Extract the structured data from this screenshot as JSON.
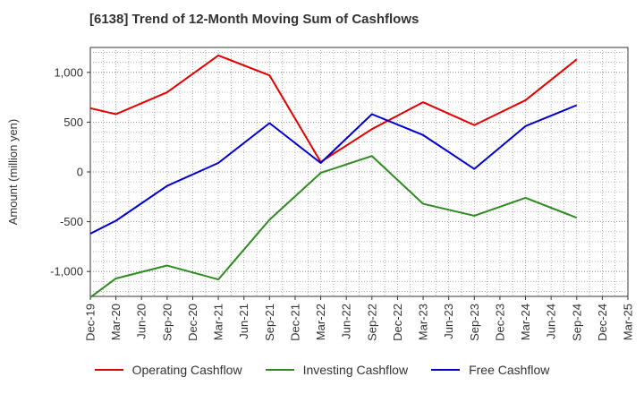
{
  "chart_data": {
    "type": "line",
    "title": "[6138]  Trend of 12-Month Moving Sum of Cashflows",
    "xlabel": "",
    "ylabel": "Amount (million yen)",
    "categories": [
      "Dec-19",
      "Mar-20",
      "Jun-20",
      "Sep-20",
      "Dec-20",
      "Mar-21",
      "Jun-21",
      "Sep-21",
      "Dec-21",
      "Mar-22",
      "Jun-22",
      "Sep-22",
      "Dec-22",
      "Mar-23",
      "Jun-23",
      "Sep-23",
      "Dec-23",
      "Mar-24",
      "Jun-24",
      "Sep-24",
      "Dec-24",
      "Mar-25"
    ],
    "y_ticks": [
      1000,
      500,
      0,
      -500,
      -1000
    ],
    "y_tick_labels": [
      "1,000",
      "500",
      "0",
      "-500",
      "-1,000"
    ],
    "ylim": [
      -1250,
      1250
    ],
    "grid": true,
    "legend_position": "bottom",
    "series": [
      {
        "name": "Operating Cashflow",
        "color": "#e00000",
        "x": [
          "Dec-19",
          "Mar-20",
          "Sep-20",
          "Mar-21",
          "Sep-21",
          "Mar-22",
          "Sep-22",
          "Mar-23",
          "Sep-23",
          "Mar-24",
          "Sep-24"
        ],
        "values": [
          640,
          580,
          800,
          1170,
          970,
          100,
          430,
          700,
          470,
          720,
          1130
        ]
      },
      {
        "name": "Investing Cashflow",
        "color": "#2e8b20",
        "x": [
          "Dec-19",
          "Mar-20",
          "Sep-20",
          "Mar-21",
          "Sep-21",
          "Mar-22",
          "Sep-22",
          "Mar-23",
          "Sep-23",
          "Mar-24",
          "Sep-24"
        ],
        "values": [
          -1260,
          -1070,
          -940,
          -1080,
          -480,
          -10,
          160,
          -320,
          -440,
          -260,
          -460
        ]
      },
      {
        "name": "Free Cashflow",
        "color": "#0000cc",
        "x": [
          "Dec-19",
          "Mar-20",
          "Sep-20",
          "Mar-21",
          "Sep-21",
          "Mar-22",
          "Sep-22",
          "Mar-23",
          "Sep-23",
          "Mar-24",
          "Sep-24"
        ],
        "values": [
          -620,
          -490,
          -140,
          90,
          490,
          90,
          580,
          370,
          30,
          460,
          670
        ]
      }
    ]
  }
}
